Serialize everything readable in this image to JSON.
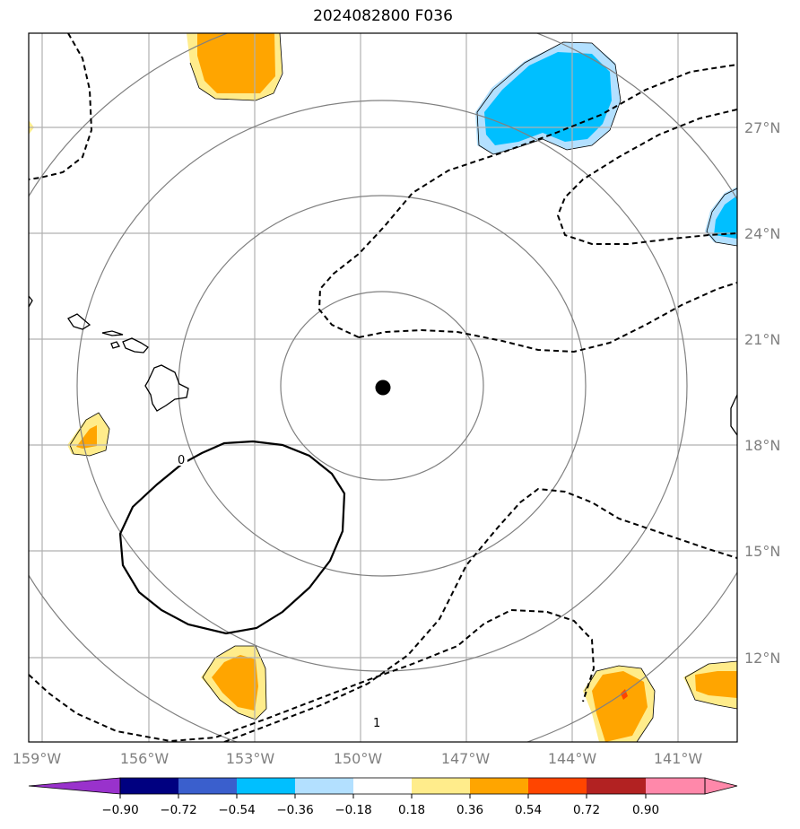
{
  "title": "2024082800 F036",
  "map": {
    "lon_labels": [
      "159°W",
      "156°W",
      "153°W",
      "150°W",
      "147°W",
      "144°W",
      "141°W"
    ],
    "lat_labels": [
      "27°N",
      "24°N",
      "21°N",
      "18°N",
      "15°N",
      "12°N"
    ],
    "contour_labels": [
      "0",
      "1"
    ],
    "storm_center": {
      "lon": -150.0,
      "lat": 19.8
    },
    "range_ring_color": "#808080",
    "gridline_color": "#b0b0b0"
  },
  "colorbar": {
    "ticks": [
      "−0.90",
      "−0.72",
      "−0.54",
      "−0.36",
      "−0.18",
      "0.18",
      "0.36",
      "0.54",
      "0.72",
      "0.90"
    ],
    "colors": [
      "#9932cc",
      "#000080",
      "#3a5fcd",
      "#00bfff",
      "#b3e0ff",
      "#ffffff",
      "#ffec8b",
      "#ffa500",
      "#ff4500",
      "#b22222",
      "#ff88aa"
    ],
    "extend_low_color": "#9932cc",
    "extend_high_color": "#ff88aa"
  }
}
